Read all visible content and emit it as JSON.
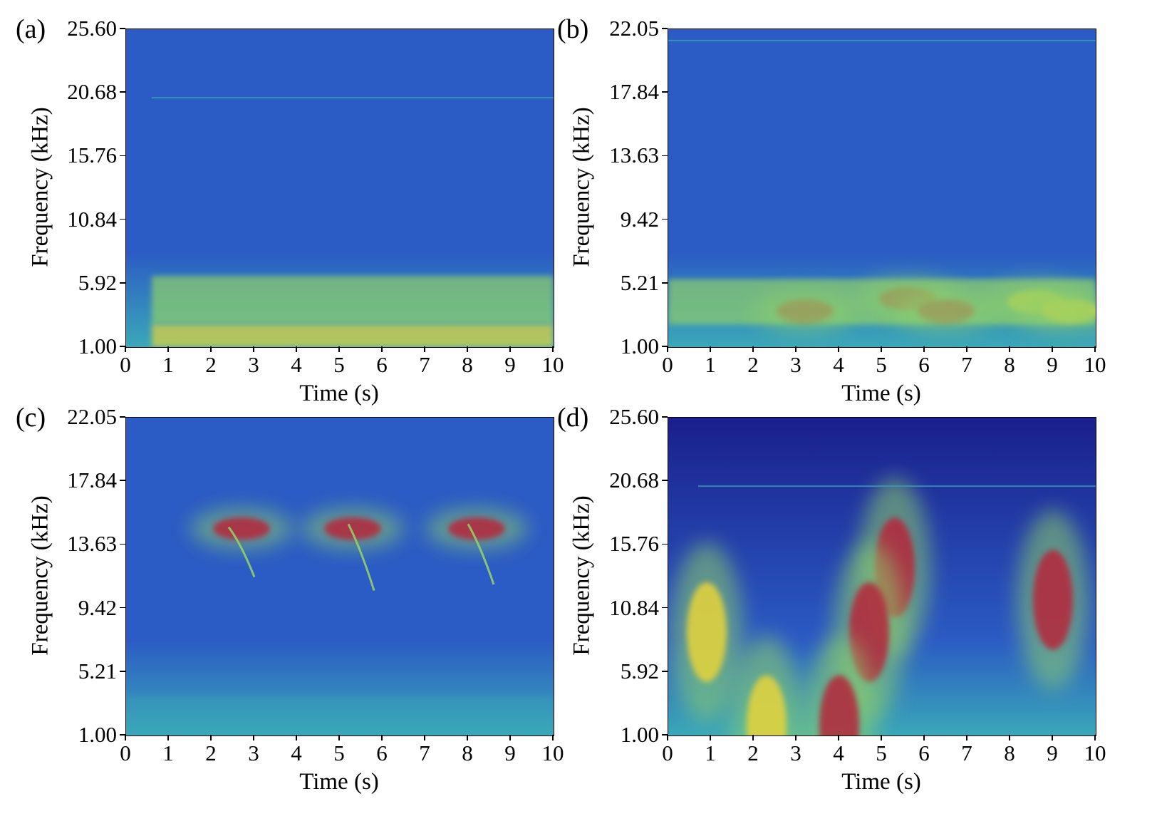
{
  "figure": {
    "colors": {
      "background": "#ffffff",
      "colormap_low": "#1a1f8c",
      "colormap_blue": "#2b5bc4",
      "colormap_cyan": "#3aa8b8",
      "colormap_green": "#8fd06a",
      "colormap_yellow": "#e6d43a",
      "colormap_red": "#b5283a"
    }
  },
  "chart_data": [
    {
      "panel": "(a)",
      "type": "heatmap",
      "title": "",
      "xlabel": "Time (s)",
      "ylabel": "Frequency (kHz)",
      "xlim": [
        0,
        10
      ],
      "ylim": [
        1.0,
        25.6
      ],
      "xticks": [
        "0",
        "1",
        "2",
        "3",
        "4",
        "5",
        "6",
        "7",
        "8",
        "9",
        "10"
      ],
      "yticks": [
        "1.00",
        "5.92",
        "10.84",
        "15.76",
        "20.68",
        "25.60"
      ],
      "features": [
        {
          "kind": "band",
          "t_start": 0.6,
          "t_end": 10,
          "f_low": 1.0,
          "f_high": 2.8,
          "intensity": "high"
        },
        {
          "kind": "band",
          "t_start": 0.6,
          "t_end": 10,
          "f_low": 2.8,
          "f_high": 6.5,
          "intensity": "medium"
        },
        {
          "kind": "line",
          "t_start": 0.6,
          "t_end": 10,
          "freq": 20.3,
          "intensity": "low"
        }
      ]
    },
    {
      "panel": "(b)",
      "type": "heatmap",
      "title": "",
      "xlabel": "Time (s)",
      "ylabel": "Frequency (kHz)",
      "xlim": [
        0,
        10
      ],
      "ylim": [
        1.0,
        22.05
      ],
      "xticks": [
        "0",
        "1",
        "2",
        "3",
        "4",
        "5",
        "6",
        "7",
        "8",
        "9",
        "10"
      ],
      "yticks": [
        "1.00",
        "5.21",
        "9.42",
        "13.63",
        "17.84",
        "22.05"
      ],
      "features": [
        {
          "kind": "blob",
          "t": 3.2,
          "freq": 3.4,
          "intensity": "high"
        },
        {
          "kind": "blob",
          "t": 5.6,
          "freq": 4.2,
          "intensity": "high"
        },
        {
          "kind": "blob",
          "t": 6.5,
          "freq": 3.4,
          "intensity": "high"
        },
        {
          "kind": "blob",
          "t": 8.6,
          "freq": 4.0,
          "intensity": "medium"
        },
        {
          "kind": "blob",
          "t": 9.4,
          "freq": 3.4,
          "intensity": "medium"
        },
        {
          "kind": "band",
          "t_start": 0,
          "t_end": 10,
          "f_low": 2.5,
          "f_high": 5.5,
          "intensity": "medium"
        },
        {
          "kind": "line",
          "t_start": 0,
          "t_end": 10,
          "freq": 21.3,
          "intensity": "medium"
        }
      ]
    },
    {
      "panel": "(c)",
      "type": "heatmap",
      "title": "",
      "xlabel": "Time (s)",
      "ylabel": "Frequency (kHz)",
      "xlim": [
        0,
        10
      ],
      "ylim": [
        1.0,
        22.05
      ],
      "xticks": [
        "0",
        "1",
        "2",
        "3",
        "4",
        "5",
        "6",
        "7",
        "8",
        "9",
        "10"
      ],
      "yticks": [
        "1.00",
        "5.21",
        "9.42",
        "13.63",
        "17.84",
        "22.05"
      ],
      "features": [
        {
          "kind": "blob",
          "t": 2.7,
          "freq": 14.7,
          "intensity": "high"
        },
        {
          "kind": "blob",
          "t": 5.3,
          "freq": 14.7,
          "intensity": "high"
        },
        {
          "kind": "blob",
          "t": 8.2,
          "freq": 14.7,
          "intensity": "high"
        },
        {
          "kind": "chirp",
          "t_start": 2.4,
          "t_end": 3.0,
          "f_start": 14.8,
          "f_end": 11.5,
          "intensity": "high"
        },
        {
          "kind": "chirp",
          "t_start": 5.2,
          "t_end": 5.8,
          "f_start": 15.0,
          "f_end": 10.6,
          "intensity": "high"
        },
        {
          "kind": "chirp",
          "t_start": 8.0,
          "t_end": 8.6,
          "f_start": 15.0,
          "f_end": 11.0,
          "intensity": "high"
        },
        {
          "kind": "band",
          "t_start": 0,
          "t_end": 10,
          "f_low": 1.0,
          "f_high": 3.6,
          "intensity": "low"
        }
      ]
    },
    {
      "panel": "(d)",
      "type": "heatmap",
      "title": "",
      "xlabel": "Time (s)",
      "ylabel": "Frequency (kHz)",
      "xlim": [
        0,
        10
      ],
      "ylim": [
        1.0,
        25.6
      ],
      "xticks": [
        "0",
        "1",
        "2",
        "3",
        "4",
        "5",
        "6",
        "7",
        "8",
        "9",
        "10"
      ],
      "yticks": [
        "1.00",
        "5.92",
        "10.84",
        "15.76",
        "20.68",
        "25.60"
      ],
      "features": [
        {
          "kind": "blob",
          "t": 5.3,
          "freq": 14.0,
          "intensity": "high"
        },
        {
          "kind": "blob",
          "t": 4.7,
          "freq": 9.0,
          "intensity": "high"
        },
        {
          "kind": "blob",
          "t": 9.0,
          "freq": 11.5,
          "intensity": "high"
        },
        {
          "kind": "blob",
          "t": 0.9,
          "freq": 9.0,
          "intensity": "medium"
        },
        {
          "kind": "blob",
          "t": 4.0,
          "freq": 1.8,
          "intensity": "high"
        },
        {
          "kind": "blob",
          "t": 2.3,
          "freq": 1.8,
          "intensity": "medium"
        },
        {
          "kind": "line",
          "t_start": 0.7,
          "t_end": 10,
          "freq": 20.3,
          "intensity": "low"
        }
      ]
    }
  ]
}
